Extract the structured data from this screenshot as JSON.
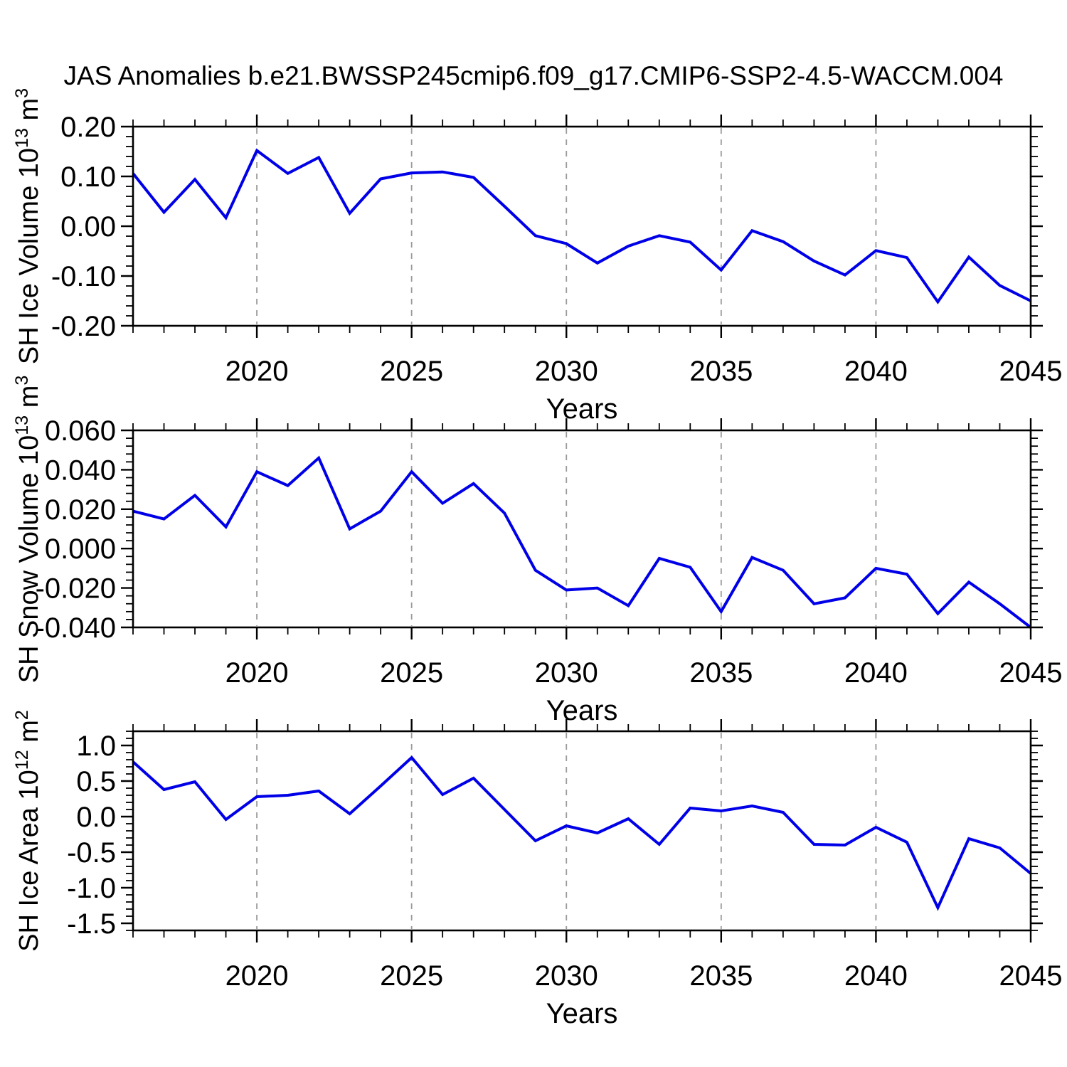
{
  "title": "JAS Anomalies b.e21.BWSSP245cmip6.f09_g17.CMIP6-SSP2-4.5-WACCM.004",
  "colors": {
    "line": "#0000e8",
    "grid": "#9a9a9a",
    "axis": "#000000",
    "background": "#ffffff"
  },
  "x_axis": {
    "label": "Years",
    "range": [
      2016,
      2045
    ],
    "minor_step": 1,
    "years": [
      2016,
      2017,
      2018,
      2019,
      2020,
      2021,
      2022,
      2023,
      2024,
      2025,
      2026,
      2027,
      2028,
      2029,
      2030,
      2031,
      2032,
      2033,
      2034,
      2035,
      2036,
      2037,
      2038,
      2039,
      2040,
      2041,
      2042,
      2043,
      2044,
      2045
    ],
    "major_ticks": [
      2020,
      2025,
      2030,
      2035,
      2040,
      2045
    ],
    "tick_labels": [
      "2020",
      "2025",
      "2030",
      "2035",
      "2040",
      "2045"
    ],
    "gridlines": [
      2020,
      2025,
      2030,
      2035,
      2040
    ]
  },
  "chart_data": [
    {
      "type": "line",
      "series_name": "SH Ice Volume",
      "ylabel_parts": [
        "SH Ice Volume 10",
        "13",
        " m",
        "3"
      ],
      "ylim": [
        -0.2,
        0.2
      ],
      "y_minor_step": 0.02,
      "grid": "x-dashed",
      "legend": "none",
      "yticks": {
        "values": [
          0.2,
          0.1,
          0.0,
          -0.1,
          -0.2
        ],
        "labels": [
          "0.20",
          "0.10",
          "0.00",
          "-0.10",
          "-0.20"
        ]
      },
      "values": [
        0.106,
        0.028,
        0.094,
        0.017,
        0.152,
        0.106,
        0.138,
        0.026,
        0.095,
        0.107,
        0.109,
        0.098,
        0.04,
        -0.019,
        -0.035,
        -0.074,
        -0.04,
        -0.019,
        -0.032,
        -0.088,
        -0.009,
        -0.031,
        -0.07,
        -0.098,
        -0.049,
        -0.063,
        -0.152,
        -0.062,
        -0.119,
        -0.15
      ]
    },
    {
      "type": "line",
      "series_name": "SH Snow Volume",
      "ylabel_parts": [
        "SH Snow Volume 10",
        "13",
        " m",
        "3"
      ],
      "ylim": [
        -0.04,
        0.06
      ],
      "y_minor_step": 0.004,
      "grid": "x-dashed",
      "legend": "none",
      "yticks": {
        "values": [
          0.06,
          0.04,
          0.02,
          0.0,
          -0.02,
          -0.04
        ],
        "labels": [
          "0.060",
          "0.040",
          "0.020",
          "0.000",
          "-0.020",
          "-0.040"
        ]
      },
      "values": [
        0.019,
        0.015,
        0.027,
        0.011,
        0.039,
        0.032,
        0.046,
        0.01,
        0.019,
        0.039,
        0.023,
        0.033,
        0.018,
        -0.011,
        -0.021,
        -0.02,
        -0.029,
        -0.005,
        -0.0095,
        -0.032,
        -0.0045,
        -0.011,
        -0.028,
        -0.025,
        -0.01,
        -0.013,
        -0.033,
        -0.017,
        -0.028,
        -0.04
      ]
    },
    {
      "type": "line",
      "series_name": "SH Ice Area",
      "ylabel_parts": [
        "SH Ice Area 10",
        "12",
        " m",
        "2"
      ],
      "ylim": [
        -1.6,
        1.2
      ],
      "y_minor_step": 0.1,
      "grid": "x-dashed",
      "legend": "none",
      "yticks": {
        "values": [
          1.0,
          0.5,
          0.0,
          -0.5,
          -1.0,
          -1.5
        ],
        "labels": [
          "1.0",
          "0.5",
          "0.0",
          "-0.5",
          "-1.0",
          "-1.5"
        ]
      },
      "values": [
        0.77,
        0.38,
        0.49,
        -0.04,
        0.28,
        0.3,
        0.36,
        0.04,
        0.43,
        0.83,
        0.31,
        0.54,
        0.1,
        -0.34,
        -0.13,
        -0.23,
        -0.03,
        -0.39,
        0.12,
        0.08,
        0.15,
        0.06,
        -0.39,
        -0.4,
        -0.15,
        -0.36,
        -1.28,
        -0.31,
        -0.44,
        -0.8
      ]
    }
  ]
}
